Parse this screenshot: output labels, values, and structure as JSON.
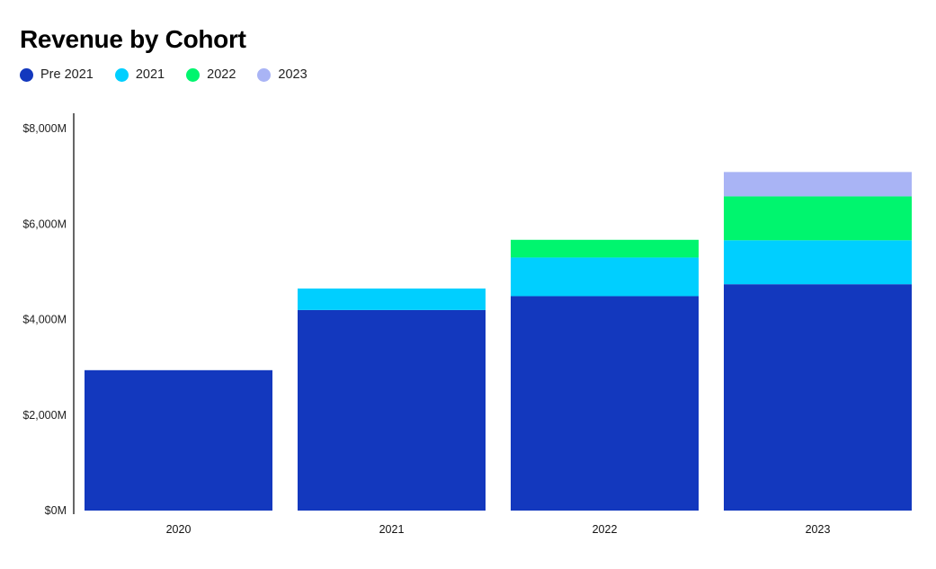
{
  "chart_data": {
    "type": "bar",
    "stacked": true,
    "title": "Revenue by Cohort",
    "xlabel": "",
    "ylabel": "",
    "categories": [
      "2020",
      "2021",
      "2022",
      "2023"
    ],
    "series": [
      {
        "name": "Pre 2021",
        "color": "#1338BE",
        "values": [
          2940,
          4200,
          4490,
          4740
        ]
      },
      {
        "name": "2021",
        "color": "#00CFFF",
        "values": [
          0,
          450,
          810,
          920
        ]
      },
      {
        "name": "2022",
        "color": "#00F56E",
        "values": [
          0,
          0,
          370,
          920
        ]
      },
      {
        "name": "2023",
        "color": "#A9B4F5",
        "values": [
          0,
          0,
          0,
          510
        ]
      }
    ],
    "ylim": [
      0,
      8000
    ],
    "yticks": [
      0,
      2000,
      4000,
      6000,
      8000
    ],
    "ytick_labels": [
      "$0M",
      "$2,000M",
      "$4,000M",
      "$6,000M",
      "$8,000M"
    ],
    "grid": false,
    "legend_position": "top-left"
  }
}
